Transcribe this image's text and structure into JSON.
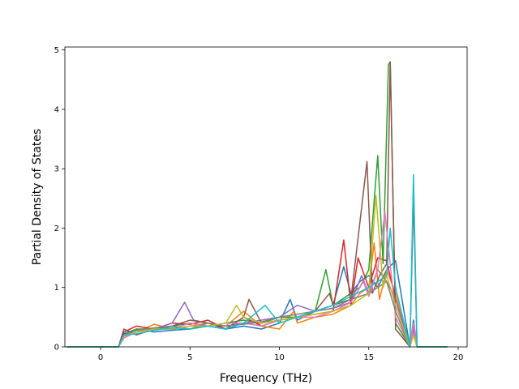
{
  "chart_data": {
    "type": "line",
    "title": "",
    "xlabel": "Frequency (THz)",
    "ylabel": "Partial Density of States",
    "xlim": [
      -2.0,
      20.5
    ],
    "ylim": [
      0,
      5.05
    ],
    "x_ticks": [
      0,
      5,
      10,
      15,
      20
    ],
    "y_ticks": [
      0,
      1,
      2,
      3,
      4,
      5
    ],
    "grid": false,
    "legend": "none",
    "palette": [
      "#1f77b4",
      "#ff7f0e",
      "#2ca02c",
      "#d62728",
      "#9467bd",
      "#8c564b",
      "#e377c2",
      "#7f7f7f",
      "#bcbd22",
      "#17becf"
    ],
    "x_range_data": [
      -1.9,
      19.4
    ],
    "series": [
      {
        "color": "#1f77b4",
        "x": [
          -1.9,
          1.0,
          1.3,
          2.0,
          3.0,
          4.0,
          5.0,
          6.0,
          7.0,
          8.0,
          9.0,
          10.0,
          10.6,
          11.0,
          12.0,
          13.0,
          13.6,
          14.0,
          14.5,
          15.0,
          15.5,
          16.0,
          16.5,
          17.3,
          17.5,
          17.7,
          19.4
        ],
        "y": [
          0,
          0,
          0.22,
          0.3,
          0.25,
          0.28,
          0.3,
          0.35,
          0.3,
          0.35,
          0.3,
          0.4,
          0.8,
          0.45,
          0.6,
          0.7,
          1.35,
          0.9,
          1.1,
          1.2,
          1.0,
          1.3,
          1.45,
          0,
          0.45,
          0,
          0
        ]
      },
      {
        "color": "#ff7f0e",
        "x": [
          -1.9,
          1.0,
          1.3,
          2.0,
          3.0,
          4.0,
          5.0,
          6.0,
          7.0,
          8.0,
          9.0,
          10.0,
          10.8,
          11.0,
          12.0,
          13.0,
          14.0,
          14.5,
          15.0,
          15.3,
          15.6,
          16.0,
          16.5,
          17.3,
          17.5,
          17.7,
          19.4
        ],
        "y": [
          0,
          0,
          0.15,
          0.25,
          0.38,
          0.3,
          0.35,
          0.4,
          0.35,
          0.6,
          0.35,
          0.3,
          0.6,
          0.4,
          0.5,
          0.55,
          0.7,
          0.9,
          1.0,
          1.75,
          0.8,
          1.3,
          0.9,
          0,
          0.35,
          0,
          0
        ]
      },
      {
        "color": "#2ca02c",
        "x": [
          -1.9,
          1.0,
          1.3,
          2.0,
          3.0,
          4.0,
          5.0,
          6.0,
          7.0,
          8.0,
          9.0,
          10.0,
          11.0,
          12.0,
          12.6,
          13.0,
          14.0,
          14.5,
          15.0,
          15.5,
          15.8,
          16.1,
          16.2,
          16.5,
          17.3,
          17.5,
          17.7,
          19.4
        ],
        "y": [
          0,
          0,
          0.2,
          0.3,
          0.3,
          0.35,
          0.4,
          0.35,
          0.4,
          0.45,
          0.4,
          0.5,
          0.5,
          0.6,
          1.3,
          0.7,
          0.9,
          1.0,
          1.3,
          3.22,
          1.4,
          4.75,
          4.8,
          0.4,
          0,
          0.3,
          0,
          0
        ]
      },
      {
        "color": "#d62728",
        "x": [
          -1.9,
          1.0,
          1.3,
          2.0,
          3.0,
          4.0,
          5.0,
          6.0,
          7.0,
          8.0,
          9.0,
          10.0,
          11.0,
          12.0,
          13.0,
          13.6,
          14.0,
          14.4,
          15.0,
          15.5,
          16.0,
          16.5,
          17.3,
          17.5,
          17.7,
          19.4
        ],
        "y": [
          0,
          0,
          0.25,
          0.35,
          0.3,
          0.4,
          0.38,
          0.45,
          0.3,
          0.5,
          0.35,
          0.45,
          0.5,
          0.55,
          0.6,
          1.8,
          0.7,
          1.5,
          1.0,
          1.5,
          1.45,
          0.8,
          0,
          0.3,
          0,
          0
        ]
      },
      {
        "color": "#9467bd",
        "x": [
          -1.9,
          1.0,
          1.3,
          2.0,
          3.0,
          4.0,
          4.7,
          5.2,
          6.0,
          7.0,
          8.0,
          9.0,
          10.0,
          11.0,
          12.0,
          13.0,
          14.0,
          14.6,
          15.0,
          15.5,
          16.0,
          16.5,
          17.3,
          17.5,
          17.7,
          19.4
        ],
        "y": [
          0,
          0,
          0.18,
          0.25,
          0.3,
          0.4,
          0.75,
          0.45,
          0.4,
          0.35,
          0.4,
          0.45,
          0.5,
          0.7,
          0.6,
          0.65,
          0.75,
          1.2,
          0.9,
          1.3,
          1.1,
          0.8,
          0,
          0.3,
          0,
          0
        ]
      },
      {
        "color": "#8c564b",
        "x": [
          -1.9,
          1.0,
          1.3,
          2.0,
          3.0,
          4.0,
          5.0,
          6.0,
          7.0,
          8.0,
          8.3,
          9.0,
          10.0,
          11.0,
          12.0,
          12.8,
          13.0,
          14.0,
          14.9,
          15.2,
          15.6,
          16.0,
          16.2,
          16.5,
          17.3,
          17.5,
          17.7,
          19.4
        ],
        "y": [
          0,
          0,
          0.3,
          0.2,
          0.3,
          0.35,
          0.45,
          0.4,
          0.3,
          0.5,
          0.8,
          0.4,
          0.45,
          0.5,
          0.6,
          0.9,
          0.7,
          0.8,
          3.12,
          0.9,
          1.2,
          1.4,
          4.8,
          0.3,
          0,
          2.52,
          0,
          0
        ]
      },
      {
        "color": "#e377c2",
        "x": [
          -1.9,
          1.0,
          1.3,
          2.0,
          3.0,
          4.0,
          5.0,
          6.0,
          7.0,
          8.0,
          9.0,
          10.0,
          11.0,
          12.0,
          13.0,
          14.0,
          14.7,
          15.0,
          15.5,
          15.9,
          16.3,
          16.5,
          17.3,
          17.5,
          17.7,
          19.4
        ],
        "y": [
          0,
          0,
          0.15,
          0.25,
          0.3,
          0.3,
          0.4,
          0.35,
          0.4,
          0.4,
          0.35,
          0.45,
          0.5,
          0.5,
          0.6,
          0.75,
          1.1,
          0.85,
          1.3,
          2.27,
          1.1,
          0.5,
          0,
          0.4,
          0,
          0
        ]
      },
      {
        "color": "#7f7f7f",
        "x": [
          -1.9,
          1.0,
          1.3,
          2.0,
          3.0,
          4.0,
          5.0,
          6.0,
          7.0,
          8.0,
          9.0,
          10.0,
          11.0,
          12.0,
          13.0,
          14.0,
          15.0,
          15.5,
          16.0,
          16.5,
          17.3,
          17.5,
          17.7,
          19.4
        ],
        "y": [
          0,
          0,
          0.2,
          0.28,
          0.32,
          0.35,
          0.3,
          0.4,
          0.35,
          0.38,
          0.42,
          0.5,
          0.55,
          0.6,
          0.65,
          0.8,
          0.9,
          1.0,
          1.1,
          0.6,
          0,
          0.2,
          0,
          0
        ]
      },
      {
        "color": "#bcbd22",
        "x": [
          -1.9,
          1.0,
          1.3,
          2.0,
          3.0,
          4.0,
          5.0,
          6.0,
          7.0,
          7.6,
          8.0,
          9.0,
          10.0,
          11.0,
          12.0,
          13.0,
          14.0,
          15.0,
          15.4,
          15.8,
          16.0,
          16.5,
          17.3,
          17.5,
          17.7,
          19.4
        ],
        "y": [
          0,
          0,
          0.18,
          0.25,
          0.3,
          0.3,
          0.35,
          0.35,
          0.4,
          0.7,
          0.5,
          0.4,
          0.45,
          0.5,
          0.55,
          0.6,
          0.7,
          0.9,
          2.55,
          1.0,
          1.2,
          0.7,
          0,
          0.2,
          0,
          0
        ]
      },
      {
        "color": "#17becf",
        "x": [
          -1.9,
          1.0,
          1.3,
          2.0,
          3.0,
          4.0,
          5.0,
          6.0,
          7.0,
          8.0,
          9.2,
          10.0,
          11.0,
          12.0,
          13.0,
          14.0,
          15.0,
          15.5,
          16.0,
          16.2,
          16.5,
          17.3,
          17.5,
          17.7,
          19.4
        ],
        "y": [
          0,
          0,
          0.2,
          0.22,
          0.28,
          0.32,
          0.3,
          0.35,
          0.3,
          0.4,
          0.7,
          0.4,
          0.5,
          0.6,
          0.7,
          0.85,
          1.0,
          1.1,
          1.2,
          2.0,
          1.0,
          0,
          2.9,
          0,
          0
        ]
      }
    ]
  }
}
